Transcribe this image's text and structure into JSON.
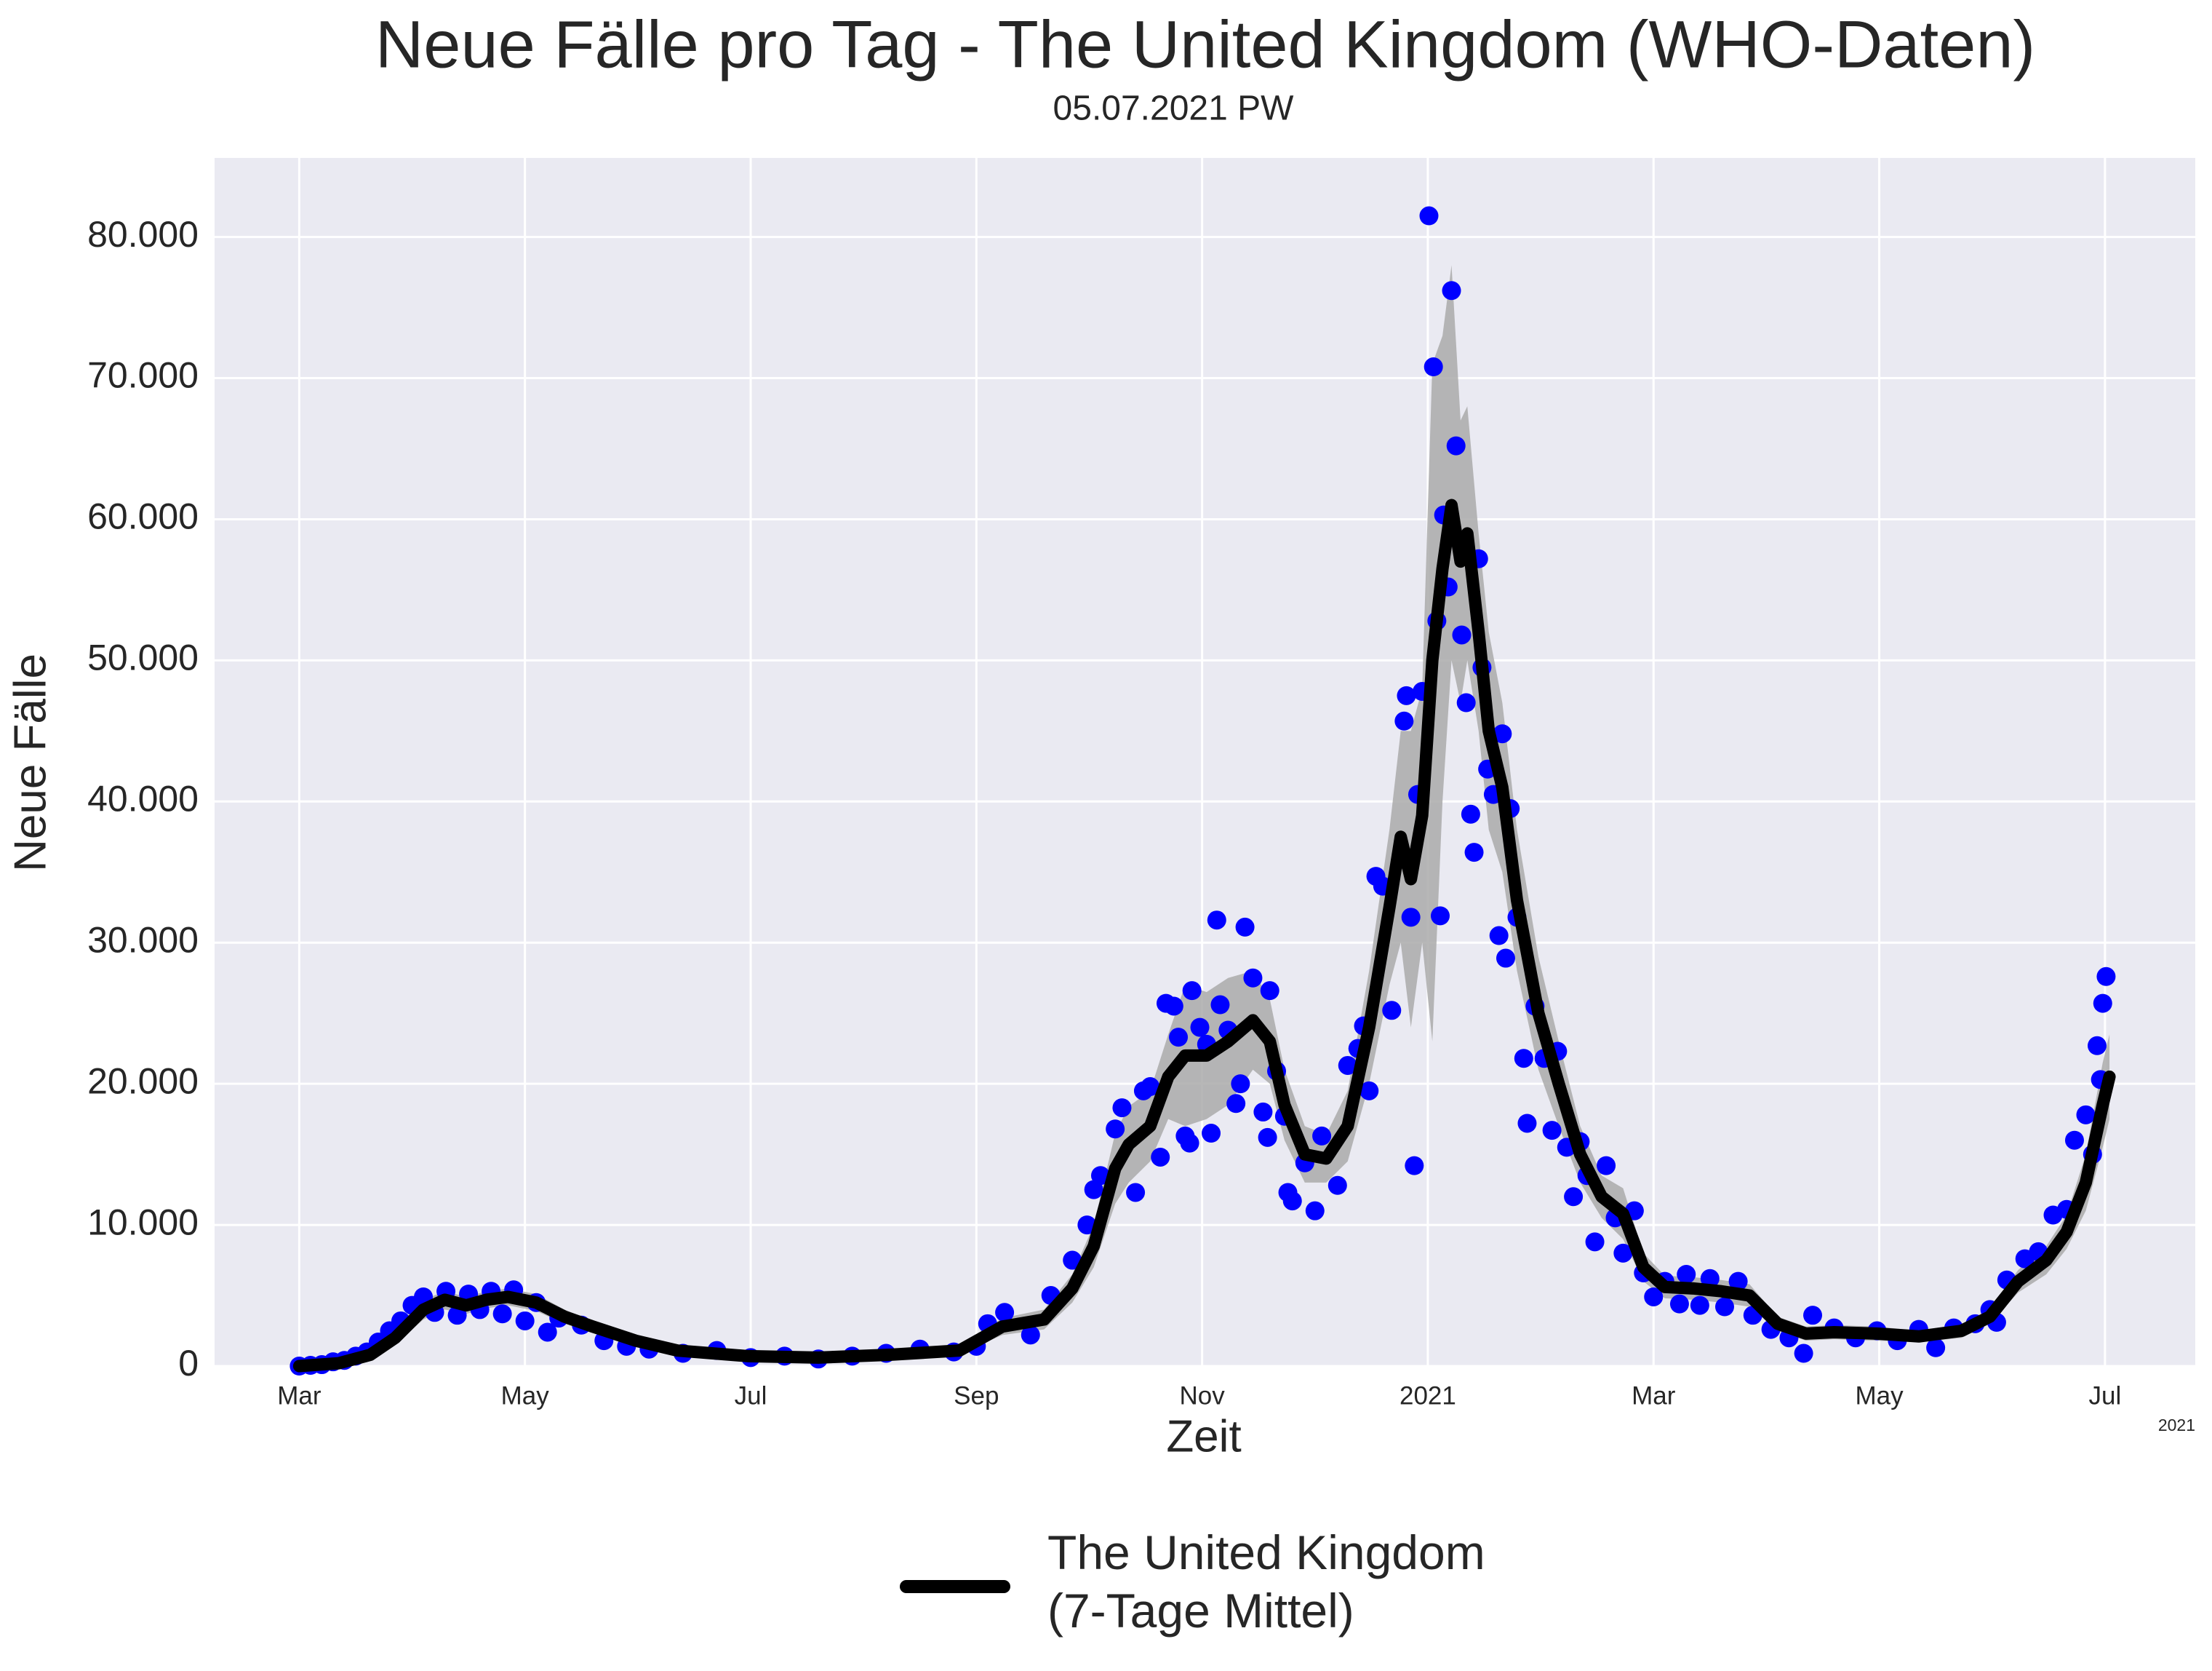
{
  "chart_data": {
    "type": "line",
    "title": "Neue Fälle pro Tag - The United Kingdom (WHO-Daten)",
    "subtitle": "05.07.2021 PW",
    "x_label": "Zeit",
    "y_label": "Neue Fälle",
    "x_offset_label": "2021",
    "grid": true,
    "legend": "bottom",
    "xlim": [
      2.25,
      19.8
    ],
    "ylim": [
      0,
      85600
    ],
    "xticks": [
      {
        "value": 3,
        "label": "Mar"
      },
      {
        "value": 5,
        "label": "May"
      },
      {
        "value": 7,
        "label": "Jul"
      },
      {
        "value": 9,
        "label": "Sep"
      },
      {
        "value": 11,
        "label": "Nov"
      },
      {
        "value": 13,
        "label": "2021"
      },
      {
        "value": 15,
        "label": "Mar"
      },
      {
        "value": 17,
        "label": "May"
      },
      {
        "value": 19,
        "label": "Jul"
      }
    ],
    "yticks": [
      0,
      {
        "value": 10000,
        "label": "10.000"
      },
      {
        "value": 20000,
        "label": "20.000"
      },
      {
        "value": 30000,
        "label": "30.000"
      },
      {
        "value": 40000,
        "label": "40.000"
      },
      {
        "value": 50000,
        "label": "50.000"
      },
      {
        "value": 60000,
        "label": "60.000"
      },
      {
        "value": 70000,
        "label": "70.000"
      },
      {
        "value": 80000,
        "label": "80.000"
      }
    ],
    "series": [
      {
        "type": "scatter",
        "color": "#0000ff",
        "x": [
          3.0,
          3.1,
          3.2,
          3.3,
          3.4,
          3.5,
          3.6,
          3.7,
          3.8,
          3.9,
          4.0,
          4.1,
          4.2,
          4.3,
          4.4,
          4.5,
          4.6,
          4.7,
          4.8,
          4.9,
          5.0,
          5.1,
          5.2,
          5.3,
          5.5,
          5.7,
          5.9,
          6.1,
          6.4,
          6.7,
          7.0,
          7.3,
          7.6,
          7.9,
          8.2,
          8.5,
          8.8,
          9.0,
          9.1,
          9.25,
          9.48,
          9.66,
          9.85,
          9.98,
          10.04,
          10.1,
          10.23,
          10.29,
          10.41,
          10.48,
          10.54,
          10.63,
          10.68,
          10.75,
          10.79,
          10.85,
          10.89,
          10.91,
          10.98,
          11.04,
          11.08,
          11.13,
          11.16,
          11.23,
          11.3,
          11.34,
          11.38,
          11.45,
          11.54,
          11.58,
          11.6,
          11.66,
          11.73,
          11.76,
          11.8,
          11.91,
          12.0,
          12.06,
          12.2,
          12.29,
          12.38,
          12.43,
          12.48,
          12.54,
          12.6,
          12.68,
          12.79,
          12.81,
          12.85,
          12.88,
          12.91,
          12.95,
          13.01,
          13.05,
          13.08,
          13.11,
          13.14,
          13.18,
          13.21,
          13.25,
          13.3,
          13.34,
          13.38,
          13.41,
          13.45,
          13.48,
          13.53,
          13.58,
          13.63,
          13.66,
          13.69,
          13.73,
          13.79,
          13.85,
          13.88,
          13.95,
          14.03,
          14.1,
          14.15,
          14.23,
          14.29,
          14.35,
          14.41,
          14.48,
          14.58,
          14.66,
          14.73,
          14.83,
          14.91,
          15.0,
          15.1,
          15.23,
          15.29,
          15.41,
          15.5,
          15.63,
          15.75,
          15.88,
          16.04,
          16.2,
          16.33,
          16.41,
          16.6,
          16.79,
          16.98,
          17.16,
          17.35,
          17.5,
          17.66,
          17.85,
          17.98,
          18.04,
          18.13,
          18.29,
          18.41,
          18.54,
          18.66,
          18.73,
          18.83,
          18.89,
          18.93,
          18.96,
          18.98,
          19.01
        ],
        "values": [
          0,
          50,
          100,
          300,
          400,
          700,
          1000,
          1700,
          2500,
          3200,
          4300,
          4900,
          3800,
          5300,
          3600,
          5100,
          4000,
          5300,
          3700,
          5400,
          3200,
          4500,
          2400,
          3400,
          2900,
          1800,
          1400,
          1200,
          900,
          1100,
          600,
          700,
          500,
          700,
          900,
          1200,
          1000,
          1400,
          3000,
          3800,
          2200,
          5000,
          7500,
          10000,
          12500,
          13500,
          16800,
          18300,
          12300,
          19500,
          19800,
          14800,
          25700,
          25500,
          23300,
          16300,
          15800,
          26600,
          24000,
          22800,
          16500,
          31600,
          25600,
          23800,
          18600,
          20000,
          31100,
          27500,
          18000,
          16200,
          26600,
          20900,
          17700,
          12300,
          11700,
          14400,
          11000,
          16300,
          12800,
          21300,
          22500,
          24100,
          19500,
          34700,
          34000,
          25200,
          45700,
          47500,
          31800,
          14200,
          40500,
          47800,
          81500,
          70800,
          52800,
          31900,
          60300,
          55200,
          76200,
          65200,
          51800,
          47000,
          39100,
          36400,
          57200,
          49500,
          42300,
          40500,
          30500,
          44800,
          28900,
          39500,
          31800,
          21800,
          17200,
          25500,
          21800,
          16700,
          22300,
          15500,
          12000,
          15900,
          13500,
          8800,
          14200,
          10500,
          8000,
          11000,
          6600,
          4900,
          6000,
          4400,
          6500,
          4300,
          6200,
          4200,
          6000,
          3600,
          2600,
          2000,
          900,
          3600,
          2700,
          2000,
          2500,
          1800,
          2600,
          1300,
          2700,
          3000,
          4000,
          3100,
          6100,
          7600,
          8100,
          10700,
          11100,
          16000,
          17800,
          15000,
          22700,
          20300,
          25700,
          27600
        ]
      },
      {
        "type": "line",
        "name": "The United Kingdom\n(7-Tage Mittel)",
        "color": "#000000",
        "band_color": "#aaaaaa",
        "x": [
          3,
          3.35,
          3.63,
          3.85,
          4.1,
          4.29,
          4.48,
          4.66,
          4.85,
          5.1,
          5.35,
          5.6,
          5.98,
          6.35,
          6.98,
          7.6,
          8.23,
          8.85,
          9.23,
          9.6,
          9.85,
          10.04,
          10.23,
          10.35,
          10.54,
          10.7,
          10.85,
          11.04,
          11.23,
          11.45,
          11.6,
          11.73,
          11.91,
          12.1,
          12.29,
          12.48,
          12.66,
          12.76,
          12.85,
          12.95,
          13.04,
          13.13,
          13.21,
          13.29,
          13.35,
          13.45,
          13.54,
          13.66,
          13.79,
          13.98,
          14.16,
          14.35,
          14.54,
          14.73,
          14.91,
          15.1,
          15.35,
          15.6,
          15.85,
          16.1,
          16.35,
          16.6,
          16.98,
          17.35,
          17.73,
          17.98,
          18.23,
          18.48,
          18.66,
          18.83,
          18.98,
          19.04
        ],
        "values": [
          0,
          200,
          800,
          2000,
          4000,
          4700,
          4300,
          4700,
          4900,
          4500,
          3500,
          2800,
          1800,
          1100,
          700,
          600,
          800,
          1100,
          2800,
          3300,
          5500,
          8500,
          14000,
          15700,
          17000,
          20500,
          22000,
          22000,
          23000,
          24500,
          23000,
          18500,
          15000,
          14700,
          17000,
          24000,
          32500,
          37500,
          34500,
          39000,
          50000,
          56500,
          61000,
          57000,
          59000,
          52000,
          45000,
          41000,
          33000,
          25000,
          20000,
          15000,
          12000,
          10800,
          7000,
          5600,
          5500,
          5300,
          5000,
          3000,
          2300,
          2400,
          2300,
          2100,
          2500,
          3500,
          6000,
          7500,
          9500,
          13000,
          18500,
          20500
        ],
        "lower": [
          0,
          100,
          500,
          1500,
          3300,
          4000,
          3700,
          4100,
          4300,
          3900,
          3000,
          2400,
          1500,
          900,
          550,
          450,
          600,
          850,
          2200,
          2600,
          4500,
          7000,
          11500,
          13000,
          14500,
          17500,
          17000,
          17500,
          18500,
          21000,
          20000,
          16000,
          13000,
          13000,
          14500,
          20000,
          27000,
          30000,
          24000,
          30000,
          23000,
          40000,
          50000,
          47000,
          50000,
          45000,
          38000,
          35000,
          28000,
          21000,
          17000,
          13000,
          10500,
          9000,
          6000,
          4800,
          4700,
          4500,
          4200,
          2500,
          1800,
          1900,
          1800,
          1700,
          2000,
          3000,
          5200,
          6500,
          8300,
          11000,
          15500,
          17500
        ],
        "upper": [
          0,
          400,
          1100,
          2600,
          4700,
          5300,
          4900,
          5300,
          5500,
          5100,
          4000,
          3200,
          2100,
          1300,
          850,
          750,
          1000,
          1350,
          3400,
          4000,
          6500,
          10000,
          16500,
          18400,
          19500,
          23500,
          27000,
          26500,
          27500,
          28000,
          26000,
          21000,
          17000,
          16400,
          19500,
          28000,
          38000,
          45000,
          45000,
          48000,
          71000,
          73000,
          78000,
          67000,
          68000,
          59000,
          52000,
          47000,
          38000,
          29000,
          23000,
          17000,
          13500,
          12600,
          8000,
          6400,
          6300,
          6100,
          5800,
          3500,
          2800,
          2900,
          2800,
          2500,
          3000,
          4000,
          6800,
          8500,
          10700,
          15000,
          21500,
          23500
        ]
      }
    ]
  }
}
